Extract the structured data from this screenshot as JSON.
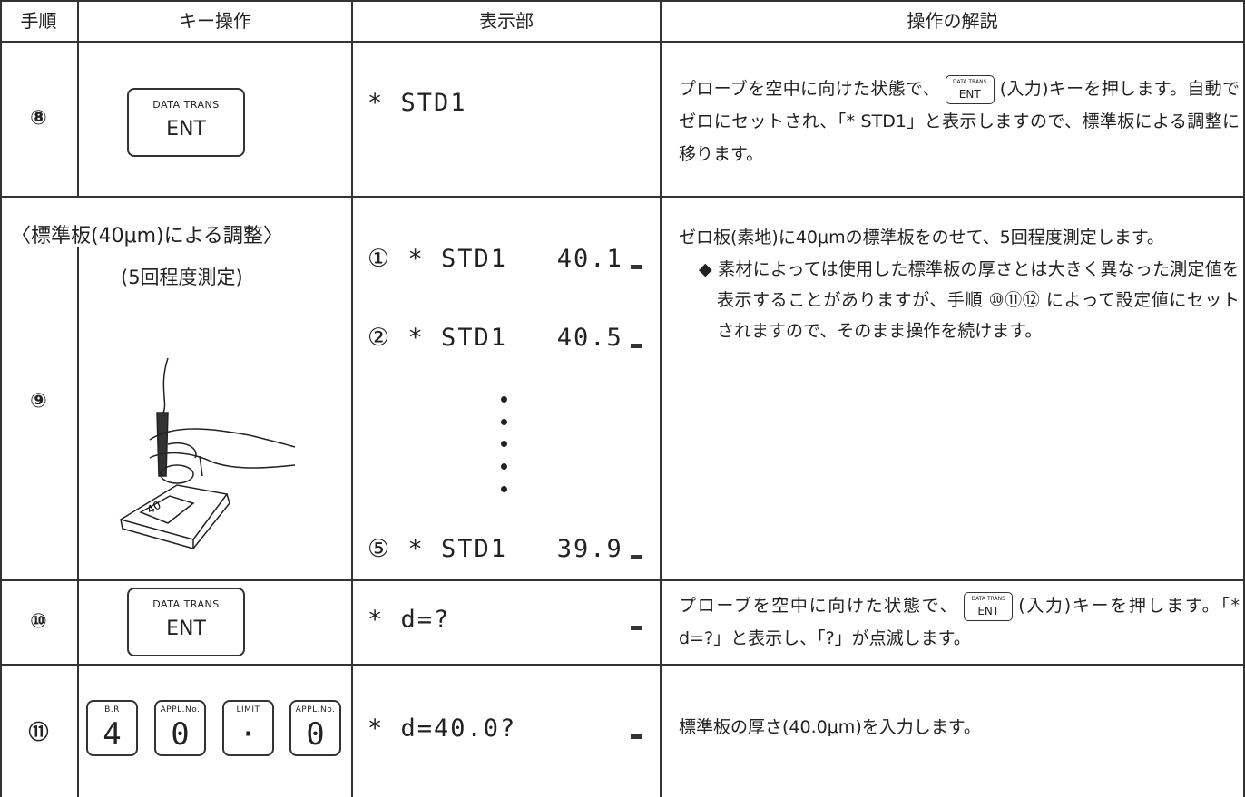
{
  "table": {
    "header": [
      "手順",
      "キー操作",
      "表示部",
      "操作の解説"
    ],
    "rows": [
      {
        "step": "⑧",
        "keys": [
          {
            "label": "DATA TRANS",
            "key": "ENT"
          }
        ],
        "display": [
          "* STD1"
        ],
        "explanation": {
          "before": "プローブを空中に向けた状態で、",
          "key": {
            "label": "DATA TRANS",
            "key": "ENT"
          },
          "after": "(入力)キーを押します。自動でゼロにセットされ、「* STD1」と表示しますので、標準板による調整に移ります。"
        }
      },
      {
        "step": "⑨",
        "title": "〈標準板(40μm)による調整〉",
        "subtitle": "(5回程度測定)",
        "plate_label": "40",
        "display": [
          "① * STD1   40.1",
          "② * STD1   40.5",
          "⑤ * STD1   39.9"
        ],
        "explanation": {
          "text": "ゼロ板(素地)に40μmの標準板をのせて、5回程度測定します。",
          "note": "◆ 素材によっては使用した標準板の厚さとは大きく異なった測定値を表示することがありますが、手順 ⑩⑪⑫ によって設定値にセットされますので、そのまま操作を続けます。"
        }
      },
      {
        "step": "⑩",
        "keys": [
          {
            "label": "DATA TRANS",
            "key": "ENT"
          }
        ],
        "display": [
          "* d=?"
        ],
        "explanation": {
          "before": "プローブを空中に向けた状態で、",
          "key": {
            "label": "DATA TRANS",
            "key": "ENT"
          },
          "after": "(入力)キーを押します。「* d=?」と表示し、「?」が点滅します。"
        }
      },
      {
        "step": "⑪",
        "keys": [
          {
            "label": "B.R",
            "key": "4"
          },
          {
            "label": "APPL.No.",
            "key": "0"
          },
          {
            "label": "LIMIT",
            "key": "·"
          },
          {
            "label": "APPL.No.",
            "key": "0"
          }
        ],
        "display": [
          "* d=40.0?"
        ],
        "explanation": {
          "text": "標準板の厚さ(40.0μm)を入力します。"
        }
      }
    ]
  }
}
